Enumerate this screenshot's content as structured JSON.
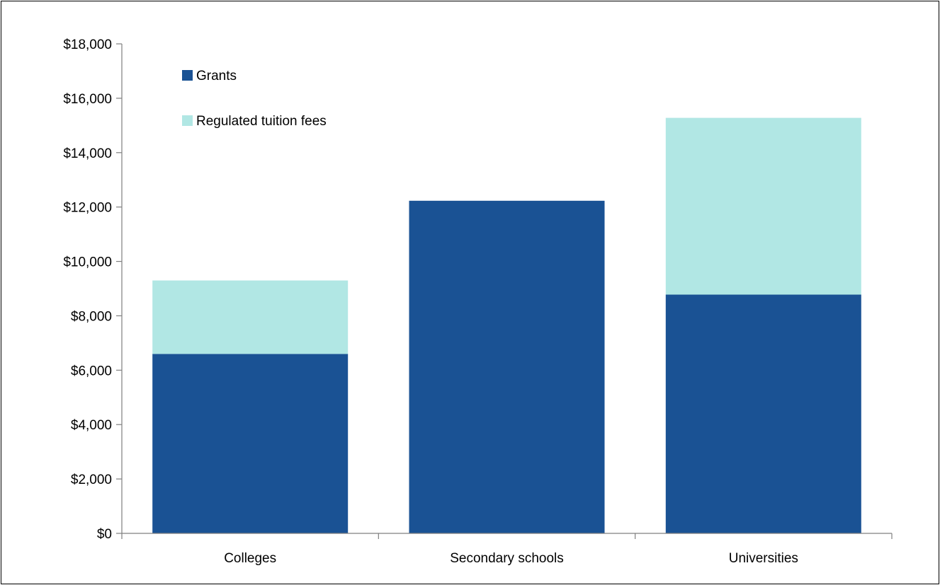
{
  "chart_data": {
    "type": "bar",
    "stacked": true,
    "categories": [
      "Colleges",
      "Secondary schools",
      "Universities"
    ],
    "series": [
      {
        "name": "Grants",
        "values": [
          6600,
          12230,
          8780
        ],
        "color": "#1a5294"
      },
      {
        "name": "Regulated tuition fees",
        "values": [
          2700,
          0,
          6500
        ],
        "color": "#b1e7e4"
      }
    ],
    "ylim": [
      0,
      18000
    ],
    "yticks": [
      "$0",
      "$2,000",
      "$4,000",
      "$6,000",
      "$8,000",
      "$10,000",
      "$12,000",
      "$14,000",
      "$16,000",
      "$18,000"
    ],
    "ytick_values": [
      0,
      2000,
      4000,
      6000,
      8000,
      10000,
      12000,
      14000,
      16000,
      18000
    ],
    "title": "",
    "xlabel": "",
    "ylabel": "",
    "grid": false,
    "legend": "top-left"
  }
}
